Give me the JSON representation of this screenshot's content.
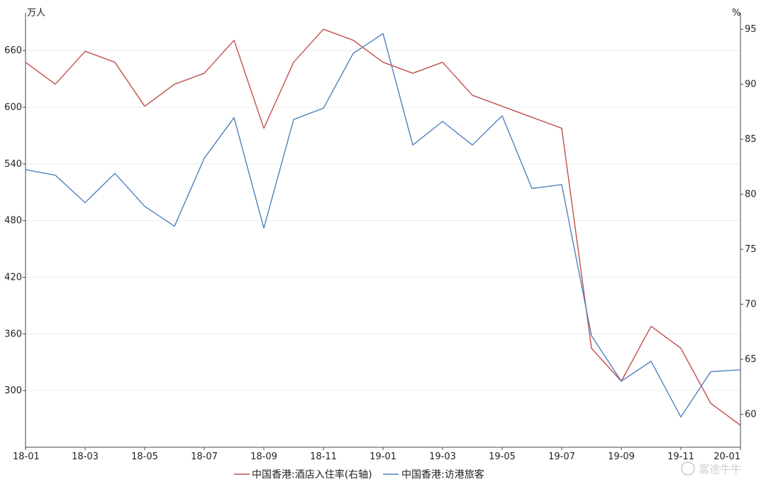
{
  "chart_data": {
    "type": "line",
    "x": [
      "18-01",
      "18-02",
      "18-03",
      "18-04",
      "18-05",
      "18-06",
      "18-07",
      "18-08",
      "18-09",
      "18-10",
      "18-11",
      "18-12",
      "19-01",
      "19-02",
      "19-03",
      "19-04",
      "19-05",
      "19-06",
      "19-07",
      "19-08",
      "19-09",
      "19-10",
      "19-11",
      "19-12",
      "20-01"
    ],
    "x_tick_labels": [
      "18-01",
      "18-03",
      "18-05",
      "18-07",
      "18-09",
      "18-11",
      "19-01",
      "19-03",
      "19-05",
      "19-07",
      "19-09",
      "19-11",
      "20-01"
    ],
    "left_axis": {
      "unit": "万人",
      "ylim": [
        240,
        700
      ],
      "ticks": [
        300,
        360,
        420,
        480,
        540,
        600,
        660
      ]
    },
    "right_axis": {
      "unit": "%",
      "ylim": [
        57,
        96.5
      ],
      "ticks": [
        60,
        65,
        70,
        75,
        80,
        85,
        90,
        95
      ]
    },
    "series": [
      {
        "name": "中国香港:酒店入住率(右轴)",
        "axis": "right",
        "color": "#c0504d",
        "values": [
          92,
          90,
          93,
          92,
          88,
          90,
          91,
          94,
          86,
          92,
          95,
          94,
          92,
          91,
          92,
          89,
          88,
          87,
          86,
          66,
          63,
          68,
          66,
          61,
          59
        ]
      },
      {
        "name": "中国香港:访港旅客",
        "axis": "left",
        "color": "#4f81bd",
        "values": [
          534,
          528,
          499,
          530,
          495,
          474,
          546,
          589,
          472,
          587,
          599,
          657,
          678,
          560,
          585,
          560,
          591,
          514,
          518,
          358,
          310,
          331,
          272,
          320,
          322
        ]
      }
    ],
    "grid": "horizontal",
    "legend_position": "bottom-center"
  },
  "watermark": {
    "text": "富途牛牛"
  }
}
